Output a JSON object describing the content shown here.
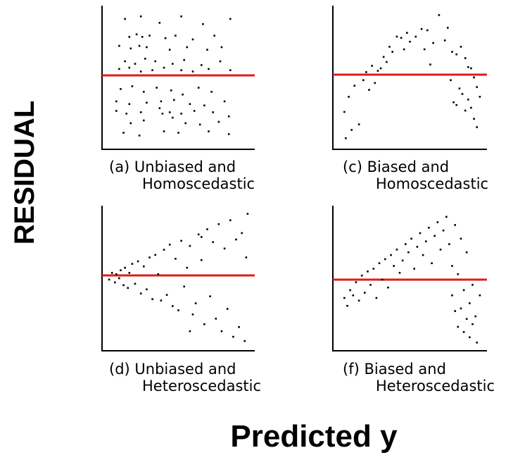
{
  "figure": {
    "xlabel": "Predicted y",
    "ylabel": "RESIDUAL"
  },
  "colors": {
    "zero_line": "#e21a1a",
    "points": "#000000",
    "axes": "#000000"
  },
  "chart_data": [
    {
      "type": "scatter",
      "title_lines": [
        "(a) Unbiased and",
        "Homoscedastic"
      ],
      "x_range": [
        0,
        100
      ],
      "y_range": [
        -50,
        50
      ],
      "zero_line": 0,
      "points": [
        [
          13,
          44
        ],
        [
          24,
          46
        ],
        [
          37,
          41
        ],
        [
          52,
          46
        ],
        [
          67,
          40
        ],
        [
          86,
          44
        ],
        [
          16,
          30
        ],
        [
          21,
          32
        ],
        [
          25,
          30
        ],
        [
          30,
          31
        ],
        [
          41,
          29
        ],
        [
          48,
          31
        ],
        [
          60,
          28
        ],
        [
          75,
          31
        ],
        [
          9,
          23
        ],
        [
          17,
          21
        ],
        [
          23,
          23
        ],
        [
          28,
          22
        ],
        [
          44,
          20
        ],
        [
          56,
          22
        ],
        [
          70,
          20
        ],
        [
          80,
          22
        ],
        [
          13,
          11
        ],
        [
          20,
          9
        ],
        [
          27,
          13
        ],
        [
          34,
          11
        ],
        [
          46,
          9
        ],
        [
          54,
          12
        ],
        [
          66,
          8
        ],
        [
          79,
          11
        ],
        [
          9,
          5
        ],
        [
          16,
          6
        ],
        [
          24,
          3
        ],
        [
          32,
          4
        ],
        [
          40,
          6
        ],
        [
          52,
          4
        ],
        [
          60,
          3
        ],
        [
          71,
          5
        ],
        [
          86,
          4
        ],
        [
          10,
          -10
        ],
        [
          18,
          -8
        ],
        [
          26,
          -12
        ],
        [
          35,
          -9
        ],
        [
          45,
          -11
        ],
        [
          53,
          -14
        ],
        [
          64,
          -9
        ],
        [
          73,
          -12
        ],
        [
          7,
          -19
        ],
        [
          16,
          -21
        ],
        [
          28,
          -20
        ],
        [
          38,
          -19
        ],
        [
          47,
          -18
        ],
        [
          58,
          -21
        ],
        [
          68,
          -22
        ],
        [
          82,
          -19
        ],
        [
          7,
          -26
        ],
        [
          14,
          -28
        ],
        [
          24,
          -27
        ],
        [
          37,
          -24
        ],
        [
          44,
          -27
        ],
        [
          52,
          -28
        ],
        [
          61,
          -26
        ],
        [
          74,
          -27
        ],
        [
          85,
          -30
        ],
        [
          17,
          -35
        ],
        [
          26,
          -33
        ],
        [
          39,
          -28
        ],
        [
          46,
          -31
        ],
        [
          55,
          -35
        ],
        [
          65,
          -36
        ],
        [
          78,
          -34
        ],
        [
          12,
          -42
        ],
        [
          23,
          -44
        ],
        [
          40,
          -41
        ],
        [
          50,
          -42
        ],
        [
          71,
          -41
        ],
        [
          85,
          -43
        ]
      ]
    },
    {
      "type": "scatter",
      "title_lines": [
        "(c) Biased and",
        "Homoscedastic"
      ],
      "x_range": [
        0,
        100
      ],
      "y_range": [
        -50,
        50
      ],
      "zero_line": 0,
      "points": [
        [
          5,
          -27
        ],
        [
          8,
          -16
        ],
        [
          12,
          -8
        ],
        [
          15,
          -36
        ],
        [
          18,
          -4
        ],
        [
          20,
          2
        ],
        [
          22,
          -11
        ],
        [
          24,
          7
        ],
        [
          26,
          -6
        ],
        [
          28,
          3
        ],
        [
          30,
          5
        ],
        [
          32,
          14
        ],
        [
          34,
          10
        ],
        [
          36,
          22
        ],
        [
          38,
          18
        ],
        [
          41,
          30
        ],
        [
          44,
          29
        ],
        [
          46,
          20
        ],
        [
          48,
          33
        ],
        [
          50,
          26
        ],
        [
          54,
          30
        ],
        [
          58,
          36
        ],
        [
          62,
          35
        ],
        [
          66,
          25
        ],
        [
          70,
          47
        ],
        [
          74,
          27
        ],
        [
          76,
          37
        ],
        [
          79,
          18
        ],
        [
          82,
          16
        ],
        [
          85,
          22
        ],
        [
          88,
          13
        ],
        [
          90,
          6
        ],
        [
          92,
          5
        ],
        [
          94,
          -2
        ],
        [
          96,
          -9
        ],
        [
          98,
          -16
        ],
        [
          78,
          -4
        ],
        [
          80,
          -20
        ],
        [
          82,
          -22
        ],
        [
          84,
          -10
        ],
        [
          86,
          -14
        ],
        [
          88,
          -26
        ],
        [
          90,
          -18
        ],
        [
          92,
          -24
        ],
        [
          94,
          -32
        ],
        [
          96,
          -38
        ],
        [
          6,
          -46
        ],
        [
          10,
          -40
        ],
        [
          60,
          20
        ],
        [
          64,
          8
        ]
      ]
    },
    {
      "type": "scatter",
      "title_lines": [
        "(d) Unbiased and",
        "Heteroscedastic"
      ],
      "x_range": [
        0,
        100
      ],
      "y_range": [
        -50,
        50
      ],
      "zero_line": 0,
      "points": [
        [
          2,
          -3
        ],
        [
          4,
          2
        ],
        [
          6,
          -5
        ],
        [
          7,
          1
        ],
        [
          9,
          -2
        ],
        [
          10,
          4
        ],
        [
          12,
          -7
        ],
        [
          13,
          6
        ],
        [
          15,
          -9
        ],
        [
          16,
          2
        ],
        [
          18,
          9
        ],
        [
          20,
          -6
        ],
        [
          22,
          11
        ],
        [
          24,
          -13
        ],
        [
          26,
          7
        ],
        [
          28,
          -10
        ],
        [
          30,
          14
        ],
        [
          32,
          -17
        ],
        [
          34,
          16
        ],
        [
          36,
          1
        ],
        [
          38,
          -18
        ],
        [
          40,
          20
        ],
        [
          42,
          -14
        ],
        [
          44,
          24
        ],
        [
          46,
          -22
        ],
        [
          48,
          13
        ],
        [
          50,
          -25
        ],
        [
          52,
          27
        ],
        [
          54,
          -8
        ],
        [
          56,
          6
        ],
        [
          58,
          23
        ],
        [
          60,
          -28
        ],
        [
          62,
          -20
        ],
        [
          64,
          32
        ],
        [
          66,
          12
        ],
        [
          68,
          -35
        ],
        [
          70,
          36
        ],
        [
          72,
          -15
        ],
        [
          74,
          26
        ],
        [
          76,
          -31
        ],
        [
          78,
          40
        ],
        [
          80,
          -40
        ],
        [
          82,
          21
        ],
        [
          84,
          -24
        ],
        [
          86,
          43
        ],
        [
          88,
          -44
        ],
        [
          90,
          28
        ],
        [
          92,
          -37
        ],
        [
          94,
          33
        ],
        [
          96,
          -47
        ],
        [
          98,
          48
        ],
        [
          97,
          14
        ],
        [
          66,
          30
        ],
        [
          58,
          -40
        ]
      ]
    },
    {
      "type": "scatter",
      "title_lines": [
        "(f) Biased and",
        "Heteroscedastic"
      ],
      "x_range": [
        0,
        100
      ],
      "y_range": [
        -50,
        50
      ],
      "zero_line": 0,
      "points": [
        [
          5,
          -14
        ],
        [
          7,
          -20
        ],
        [
          9,
          -8
        ],
        [
          11,
          -12
        ],
        [
          13,
          -2
        ],
        [
          15,
          -16
        ],
        [
          17,
          3
        ],
        [
          19,
          -10
        ],
        [
          21,
          6
        ],
        [
          23,
          -4
        ],
        [
          25,
          8
        ],
        [
          27,
          -14
        ],
        [
          29,
          12
        ],
        [
          31,
          0
        ],
        [
          33,
          15
        ],
        [
          35,
          -6
        ],
        [
          37,
          18
        ],
        [
          39,
          10
        ],
        [
          41,
          22
        ],
        [
          43,
          5
        ],
        [
          45,
          14
        ],
        [
          47,
          26
        ],
        [
          49,
          20
        ],
        [
          51,
          30
        ],
        [
          53,
          8
        ],
        [
          55,
          24
        ],
        [
          57,
          34
        ],
        [
          59,
          18
        ],
        [
          61,
          28
        ],
        [
          63,
          38
        ],
        [
          65,
          12
        ],
        [
          67,
          32
        ],
        [
          69,
          42
        ],
        [
          71,
          22
        ],
        [
          73,
          36
        ],
        [
          75,
          46
        ],
        [
          77,
          26
        ],
        [
          79,
          10
        ],
        [
          81,
          40
        ],
        [
          83,
          4
        ],
        [
          85,
          30
        ],
        [
          87,
          -8
        ],
        [
          89,
          20
        ],
        [
          91,
          -18
        ],
        [
          93,
          -4
        ],
        [
          95,
          -28
        ],
        [
          79,
          -12
        ],
        [
          81,
          -24
        ],
        [
          83,
          -36
        ],
        [
          85,
          -22
        ],
        [
          87,
          -40
        ],
        [
          89,
          -30
        ],
        [
          91,
          -44
        ],
        [
          93,
          -34
        ],
        [
          96,
          -48
        ],
        [
          98,
          -12
        ]
      ]
    }
  ]
}
